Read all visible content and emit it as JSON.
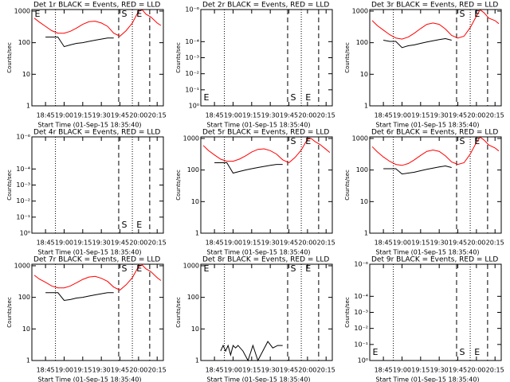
{
  "chart_data": [
    {
      "type": "line",
      "title": "Det 1r BLACK = Events, RED = LLD",
      "ylabel": "Counts/sec",
      "xlabel": "Start Time (01-Sep-15 18:35:40)",
      "log_y": true,
      "xlim": [
        "18:34",
        "20:20"
      ],
      "xticks": [
        "18:45",
        "19:00",
        "19:15",
        "19:30",
        "19:45",
        "20:00",
        "20:15"
      ],
      "ylim": [
        1,
        1120
      ],
      "yticks": [
        1,
        10,
        100,
        1000
      ],
      "x": [
        "18:36",
        "18:40",
        "18:45",
        "18:50",
        "18:55",
        "19:00",
        "19:05",
        "19:10",
        "19:15",
        "19:20",
        "19:25",
        "19:30",
        "19:35",
        "19:40",
        "19:45",
        "19:50",
        "19:55",
        "20:00",
        "20:03",
        "20:06",
        "20:10",
        "20:15",
        "20:18"
      ],
      "series": [
        {
          "color": "#ff0000",
          "values": [
            600,
            450,
            330,
            240,
            200,
            200,
            230,
            290,
            380,
            460,
            480,
            420,
            330,
            200,
            160,
            240,
            420,
            1000,
            1100,
            800,
            650,
            420,
            350
          ]
        },
        {
          "color": "#000000",
          "values": [
            null,
            null,
            150,
            150,
            150,
            75,
            85,
            95,
            100,
            110,
            120,
            130,
            140,
            140,
            null,
            null,
            null,
            null,
            null,
            null,
            null,
            null,
            null
          ]
        }
      ],
      "vlines": [
        {
          "x": "18:53",
          "style": "dotted"
        },
        {
          "x": "19:44",
          "style": "dashed"
        },
        {
          "x": "19:55",
          "style": "dotted"
        },
        {
          "x": "20:09",
          "style": "dashed"
        }
      ],
      "annotations": [
        {
          "text": "E",
          "x": "18:35"
        },
        {
          "text": "S",
          "x": "19:45"
        },
        {
          "text": "E",
          "x": "19:57"
        }
      ]
    },
    {
      "type": "line",
      "title": "Det 2r BLACK = Events, RED = LLD",
      "ylabel": "Counts/sec",
      "xlabel": "Start Time (01-Sep-15 18:35:40)",
      "log_y": true,
      "xlim": [
        "18:34",
        "20:20"
      ],
      "xticks": [
        "18:45",
        "19:00",
        "19:15",
        "19:30",
        "19:45",
        "20:00",
        "20:15"
      ],
      "ylim": [
        1,
        1e-06
      ],
      "yticks": [
        {
          "value": 1,
          "label": "10⁰"
        },
        {
          "value": 0.1,
          "label": "10⁻¹"
        },
        {
          "value": 0.01,
          "label": "10⁻²"
        },
        {
          "value": 0.001,
          "label": "10⁻³"
        },
        {
          "value": 0.0001,
          "label": "10⁻⁴"
        },
        {
          "value": 1e-06,
          "label": "10⁻⁶"
        }
      ],
      "x": [],
      "series": [],
      "vlines": [
        {
          "x": "18:53",
          "style": "dotted"
        },
        {
          "x": "19:44",
          "style": "dashed"
        },
        {
          "x": "19:55",
          "style": "dotted"
        },
        {
          "x": "20:09",
          "style": "dashed"
        }
      ],
      "annotations": [
        {
          "text": "E",
          "x": "18:35"
        },
        {
          "text": "S",
          "x": "19:45"
        },
        {
          "text": "E",
          "x": "19:57"
        }
      ]
    },
    {
      "type": "line",
      "title": "Det 3r BLACK = Events, RED = LLD",
      "ylabel": "Counts/sec",
      "xlabel": "Start Time (01-Sep-15 18:35:40)",
      "log_y": true,
      "xlim": [
        "18:34",
        "20:20"
      ],
      "xticks": [
        "18:45",
        "19:00",
        "19:15",
        "19:30",
        "19:45",
        "20:00",
        "20:15"
      ],
      "ylim": [
        1,
        1120
      ],
      "yticks": [
        1,
        10,
        100,
        1000
      ],
      "x": [
        "18:36",
        "18:40",
        "18:45",
        "18:50",
        "18:55",
        "19:00",
        "19:05",
        "19:10",
        "19:15",
        "19:20",
        "19:25",
        "19:30",
        "19:35",
        "19:40",
        "19:45",
        "19:50",
        "19:55",
        "20:00",
        "20:03",
        "20:06",
        "20:10",
        "20:15",
        "20:18"
      ],
      "series": [
        {
          "color": "#ff0000",
          "values": [
            500,
            350,
            250,
            180,
            140,
            130,
            150,
            200,
            280,
            380,
            420,
            380,
            270,
            170,
            140,
            160,
            300,
            700,
            1100,
            900,
            600,
            500,
            400
          ]
        },
        {
          "color": "#000000",
          "values": [
            null,
            null,
            120,
            110,
            110,
            70,
            80,
            85,
            95,
            105,
            115,
            125,
            135,
            120,
            null,
            null,
            null,
            null,
            null,
            null,
            null,
            null,
            null
          ]
        }
      ],
      "vlines": [
        {
          "x": "18:53",
          "style": "dotted"
        },
        {
          "x": "19:44",
          "style": "dashed"
        },
        {
          "x": "19:55",
          "style": "dotted"
        },
        {
          "x": "20:09",
          "style": "dashed"
        }
      ],
      "annotations": [
        {
          "text": "S",
          "x": "19:45"
        },
        {
          "text": "E",
          "x": "19:57"
        }
      ]
    },
    {
      "type": "line",
      "title": "Det 4r BLACK = Events, RED = LLD",
      "ylabel": "Counts/sec",
      "xlabel": "Start Time (01-Sep-15 18:35:40)",
      "log_y": true,
      "xlim": [
        "18:34",
        "20:20"
      ],
      "xticks": [
        "18:45",
        "19:00",
        "19:15",
        "19:30",
        "19:45",
        "20:00",
        "20:15"
      ],
      "ylim": [
        1,
        1e-06
      ],
      "yticks": [
        {
          "value": 1,
          "label": "10⁰"
        },
        {
          "value": 0.1,
          "label": "10⁻¹"
        },
        {
          "value": 0.01,
          "label": "10⁻²"
        },
        {
          "value": 0.001,
          "label": "10⁻³"
        },
        {
          "value": 0.0001,
          "label": "10⁻⁴"
        },
        {
          "value": 1e-06,
          "label": "10⁻⁶"
        }
      ],
      "x": [],
      "series": [],
      "vlines": [
        {
          "x": "18:53",
          "style": "dotted"
        },
        {
          "x": "19:44",
          "style": "dashed"
        },
        {
          "x": "19:55",
          "style": "dotted"
        },
        {
          "x": "20:09",
          "style": "dashed"
        }
      ],
      "annotations": [
        {
          "text": "S",
          "x": "19:45"
        },
        {
          "text": "E",
          "x": "19:57"
        }
      ]
    },
    {
      "type": "line",
      "title": "Det 5r BLACK = Events, RED = LLD",
      "ylabel": "Counts/sec",
      "xlabel": "Start Time (01-Sep-15 18:35:40)",
      "log_y": true,
      "xlim": [
        "18:34",
        "20:20"
      ],
      "xticks": [
        "18:45",
        "19:00",
        "19:15",
        "19:30",
        "19:45",
        "20:00",
        "20:15"
      ],
      "ylim": [
        1,
        1120
      ],
      "yticks": [
        1,
        10,
        100,
        1000
      ],
      "x": [
        "18:36",
        "18:40",
        "18:45",
        "18:50",
        "18:55",
        "19:00",
        "19:05",
        "19:10",
        "19:15",
        "19:20",
        "19:25",
        "19:30",
        "19:35",
        "19:40",
        "19:45",
        "19:50",
        "19:55",
        "20:00",
        "20:03",
        "20:06",
        "20:10",
        "20:15",
        "20:18"
      ],
      "series": [
        {
          "color": "#ff0000",
          "values": [
            600,
            420,
            300,
            220,
            190,
            190,
            220,
            280,
            370,
            450,
            470,
            410,
            320,
            210,
            170,
            250,
            430,
            950,
            1000,
            800,
            650,
            450,
            360
          ]
        },
        {
          "color": "#000000",
          "values": [
            null,
            null,
            170,
            170,
            170,
            80,
            90,
            100,
            110,
            120,
            130,
            140,
            150,
            150,
            null,
            null,
            null,
            null,
            null,
            null,
            null,
            null,
            null
          ]
        }
      ],
      "vlines": [
        {
          "x": "18:53",
          "style": "dotted"
        },
        {
          "x": "19:44",
          "style": "dashed"
        },
        {
          "x": "19:55",
          "style": "dotted"
        },
        {
          "x": "20:09",
          "style": "dashed"
        }
      ],
      "annotations": [
        {
          "text": "S",
          "x": "19:45"
        },
        {
          "text": "E",
          "x": "19:57"
        }
      ]
    },
    {
      "type": "line",
      "title": "Det 6r BLACK = Events, RED = LLD",
      "ylabel": "Counts/sec",
      "xlabel": "Start Time (01-Sep-15 18:35:40)",
      "log_y": true,
      "xlim": [
        "18:34",
        "20:20"
      ],
      "xticks": [
        "18:45",
        "19:00",
        "19:15",
        "19:30",
        "19:45",
        "20:00",
        "20:15"
      ],
      "ylim": [
        1,
        1120
      ],
      "yticks": [
        1,
        10,
        100,
        1000
      ],
      "x": [
        "18:36",
        "18:40",
        "18:45",
        "18:50",
        "18:55",
        "19:00",
        "19:05",
        "19:10",
        "19:15",
        "19:20",
        "19:25",
        "19:30",
        "19:35",
        "19:40",
        "19:45",
        "19:50",
        "19:55",
        "20:00",
        "20:03",
        "20:06",
        "20:10",
        "20:15",
        "20:18"
      ],
      "series": [
        {
          "color": "#ff0000",
          "values": [
            550,
            380,
            260,
            190,
            150,
            140,
            160,
            210,
            290,
            390,
            430,
            390,
            280,
            180,
            150,
            170,
            320,
            750,
            1100,
            900,
            620,
            500,
            400
          ]
        },
        {
          "color": "#000000",
          "values": [
            null,
            null,
            110,
            110,
            110,
            75,
            80,
            85,
            95,
            105,
            115,
            125,
            135,
            120,
            null,
            null,
            null,
            null,
            null,
            null,
            null,
            null,
            null
          ]
        }
      ],
      "vlines": [
        {
          "x": "18:53",
          "style": "dotted"
        },
        {
          "x": "19:44",
          "style": "dashed"
        },
        {
          "x": "19:55",
          "style": "dotted"
        },
        {
          "x": "20:09",
          "style": "dashed"
        }
      ],
      "annotations": [
        {
          "text": "S",
          "x": "19:45"
        },
        {
          "text": "E",
          "x": "19:57"
        }
      ]
    },
    {
      "type": "line",
      "title": "Det 7r BLACK = Events, RED = LLD",
      "ylabel": "Counts/sec",
      "xlabel": "Start Time (01-Sep-15 18:35:40)",
      "log_y": true,
      "xlim": [
        "18:34",
        "20:20"
      ],
      "xticks": [
        "18:45",
        "19:00",
        "19:15",
        "19:30",
        "19:45",
        "20:00",
        "20:15"
      ],
      "ylim": [
        1,
        1120
      ],
      "yticks": [
        1,
        10,
        100,
        1000
      ],
      "x": [
        "18:36",
        "18:40",
        "18:45",
        "18:50",
        "18:55",
        "19:00",
        "19:05",
        "19:10",
        "19:15",
        "19:20",
        "19:25",
        "19:30",
        "19:35",
        "19:40",
        "19:45",
        "19:50",
        "19:55",
        "20:00",
        "20:03",
        "20:06",
        "20:10",
        "20:15",
        "20:18"
      ],
      "series": [
        {
          "color": "#ff0000",
          "values": [
            500,
            380,
            300,
            230,
            200,
            200,
            230,
            290,
            370,
            440,
            460,
            400,
            320,
            210,
            170,
            250,
            420,
            950,
            1050,
            800,
            650,
            420,
            340
          ]
        },
        {
          "color": "#000000",
          "values": [
            null,
            null,
            140,
            140,
            140,
            80,
            85,
            95,
            100,
            110,
            120,
            130,
            140,
            140,
            null,
            null,
            null,
            null,
            null,
            null,
            null,
            null,
            null
          ]
        }
      ],
      "vlines": [
        {
          "x": "18:53",
          "style": "dotted"
        },
        {
          "x": "19:44",
          "style": "dashed"
        },
        {
          "x": "19:55",
          "style": "dotted"
        },
        {
          "x": "20:09",
          "style": "dashed"
        }
      ],
      "annotations": [
        {
          "text": "S",
          "x": "19:45"
        },
        {
          "text": "E",
          "x": "19:57"
        }
      ]
    },
    {
      "type": "line",
      "title": "Det 8r BLACK = Events, RED = LLD",
      "ylabel": "Counts/sec",
      "xlabel": "Start Time (01-Sep-15 18:35:40)",
      "log_y": true,
      "xlim": [
        "18:34",
        "20:20"
      ],
      "xticks": [
        "18:45",
        "19:00",
        "19:15",
        "19:30",
        "19:45",
        "20:00",
        "20:15"
      ],
      "ylim": [
        1,
        1120
      ],
      "yticks": [
        1,
        10,
        100,
        1000
      ],
      "x": [
        "18:50",
        "18:52",
        "18:54",
        "18:56",
        "18:58",
        "19:00",
        "19:02",
        "19:04",
        "19:08",
        "19:12",
        "19:16",
        "19:20",
        "19:24",
        "19:28",
        "19:32",
        "19:36",
        "19:40"
      ],
      "series": [
        {
          "color": "#000000",
          "values": [
            2,
            3,
            2,
            3,
            1.5,
            3,
            2.5,
            3,
            2,
            1,
            3,
            1,
            2,
            4,
            2.5,
            3,
            3
          ]
        }
      ],
      "vlines": [
        {
          "x": "18:53",
          "style": "dotted"
        },
        {
          "x": "19:44",
          "style": "dashed"
        },
        {
          "x": "19:55",
          "style": "dotted"
        },
        {
          "x": "20:09",
          "style": "dashed"
        }
      ],
      "annotations": [
        {
          "text": "E",
          "x": "18:35"
        },
        {
          "text": "S",
          "x": "19:45"
        },
        {
          "text": "E",
          "x": "19:57"
        }
      ]
    },
    {
      "type": "line",
      "title": "Det 9r BLACK = Events, RED = LLD",
      "ylabel": "Counts/sec",
      "xlabel": "Start Time (01-Sep-15 18:35:40)",
      "log_y": true,
      "xlim": [
        "18:34",
        "20:20"
      ],
      "xticks": [
        "18:45",
        "19:00",
        "19:15",
        "19:30",
        "19:45",
        "20:00",
        "20:15"
      ],
      "ylim": [
        1,
        1e-06
      ],
      "yticks": [
        {
          "value": 1,
          "label": "10⁰"
        },
        {
          "value": 0.1,
          "label": "10⁻¹"
        },
        {
          "value": 0.01,
          "label": "10⁻²"
        },
        {
          "value": 0.001,
          "label": "10⁻³"
        },
        {
          "value": 0.0001,
          "label": "10⁻⁴"
        },
        {
          "value": 1e-06,
          "label": "10⁻⁶"
        }
      ],
      "x": [],
      "series": [],
      "vlines": [
        {
          "x": "18:53",
          "style": "dotted"
        },
        {
          "x": "19:44",
          "style": "dashed"
        },
        {
          "x": "19:55",
          "style": "dotted"
        },
        {
          "x": "20:09",
          "style": "dashed"
        }
      ],
      "annotations": [
        {
          "text": "E",
          "x": "18:35"
        },
        {
          "text": "S",
          "x": "19:45"
        },
        {
          "text": "E",
          "x": "19:57"
        }
      ]
    }
  ]
}
